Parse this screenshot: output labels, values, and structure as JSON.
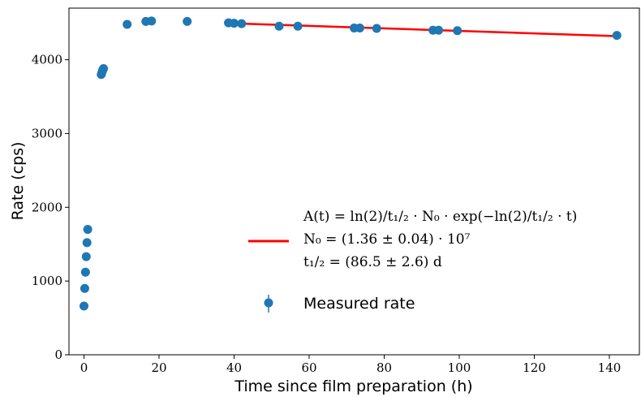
{
  "chart_data": {
    "type": "scatter",
    "title": "",
    "xlabel": "Time since film preparation (h)",
    "ylabel": "Rate (cps)",
    "xlim": [
      -4,
      148
    ],
    "ylim": [
      0,
      4700
    ],
    "xticks": [
      0,
      20,
      40,
      60,
      80,
      100,
      120,
      140
    ],
    "yticks": [
      0,
      1000,
      2000,
      3000,
      4000
    ],
    "xtick_labels": [
      "0",
      "20",
      "40",
      "60",
      "80",
      "100",
      "120",
      "140"
    ],
    "ytick_labels": [
      "0",
      "1000",
      "2000",
      "3000",
      "4000"
    ],
    "grid": false,
    "legend_position": "center-right",
    "series": [
      {
        "name": "Measured rate",
        "kind": "scatter-errorbar",
        "color": "#1f77b4",
        "x": [
          0.0,
          0.2,
          0.4,
          0.6,
          0.8,
          1.0,
          4.6,
          4.8,
          5.0,
          5.2,
          11.5,
          16.5,
          18.0,
          27.5,
          38.5,
          40.0,
          42.0,
          52.0,
          57.0,
          72.0,
          73.5,
          78.0,
          93.0,
          94.5,
          99.5,
          142.0
        ],
        "y": [
          660,
          900,
          1120,
          1330,
          1520,
          1700,
          3800,
          3830,
          3860,
          3880,
          4480,
          4520,
          4525,
          4520,
          4500,
          4495,
          4490,
          4455,
          4455,
          4430,
          4430,
          4425,
          4400,
          4400,
          4395,
          4330
        ]
      },
      {
        "name": "fit",
        "kind": "line",
        "color": "#ff0000",
        "x": [
          42.0,
          142.0
        ],
        "y": [
          4490,
          4320
        ]
      }
    ],
    "legend": {
      "fit_lines": [
        "A(t) = ln(2)/t₁/₂ · N₀ · exp(−ln(2)/t₁/₂ · t)",
        "N₀ = (1.36 ± 0.04) · 10⁷",
        "t₁/₂ = (86.5 ± 2.6) d"
      ],
      "measured_label": "Measured rate"
    }
  }
}
